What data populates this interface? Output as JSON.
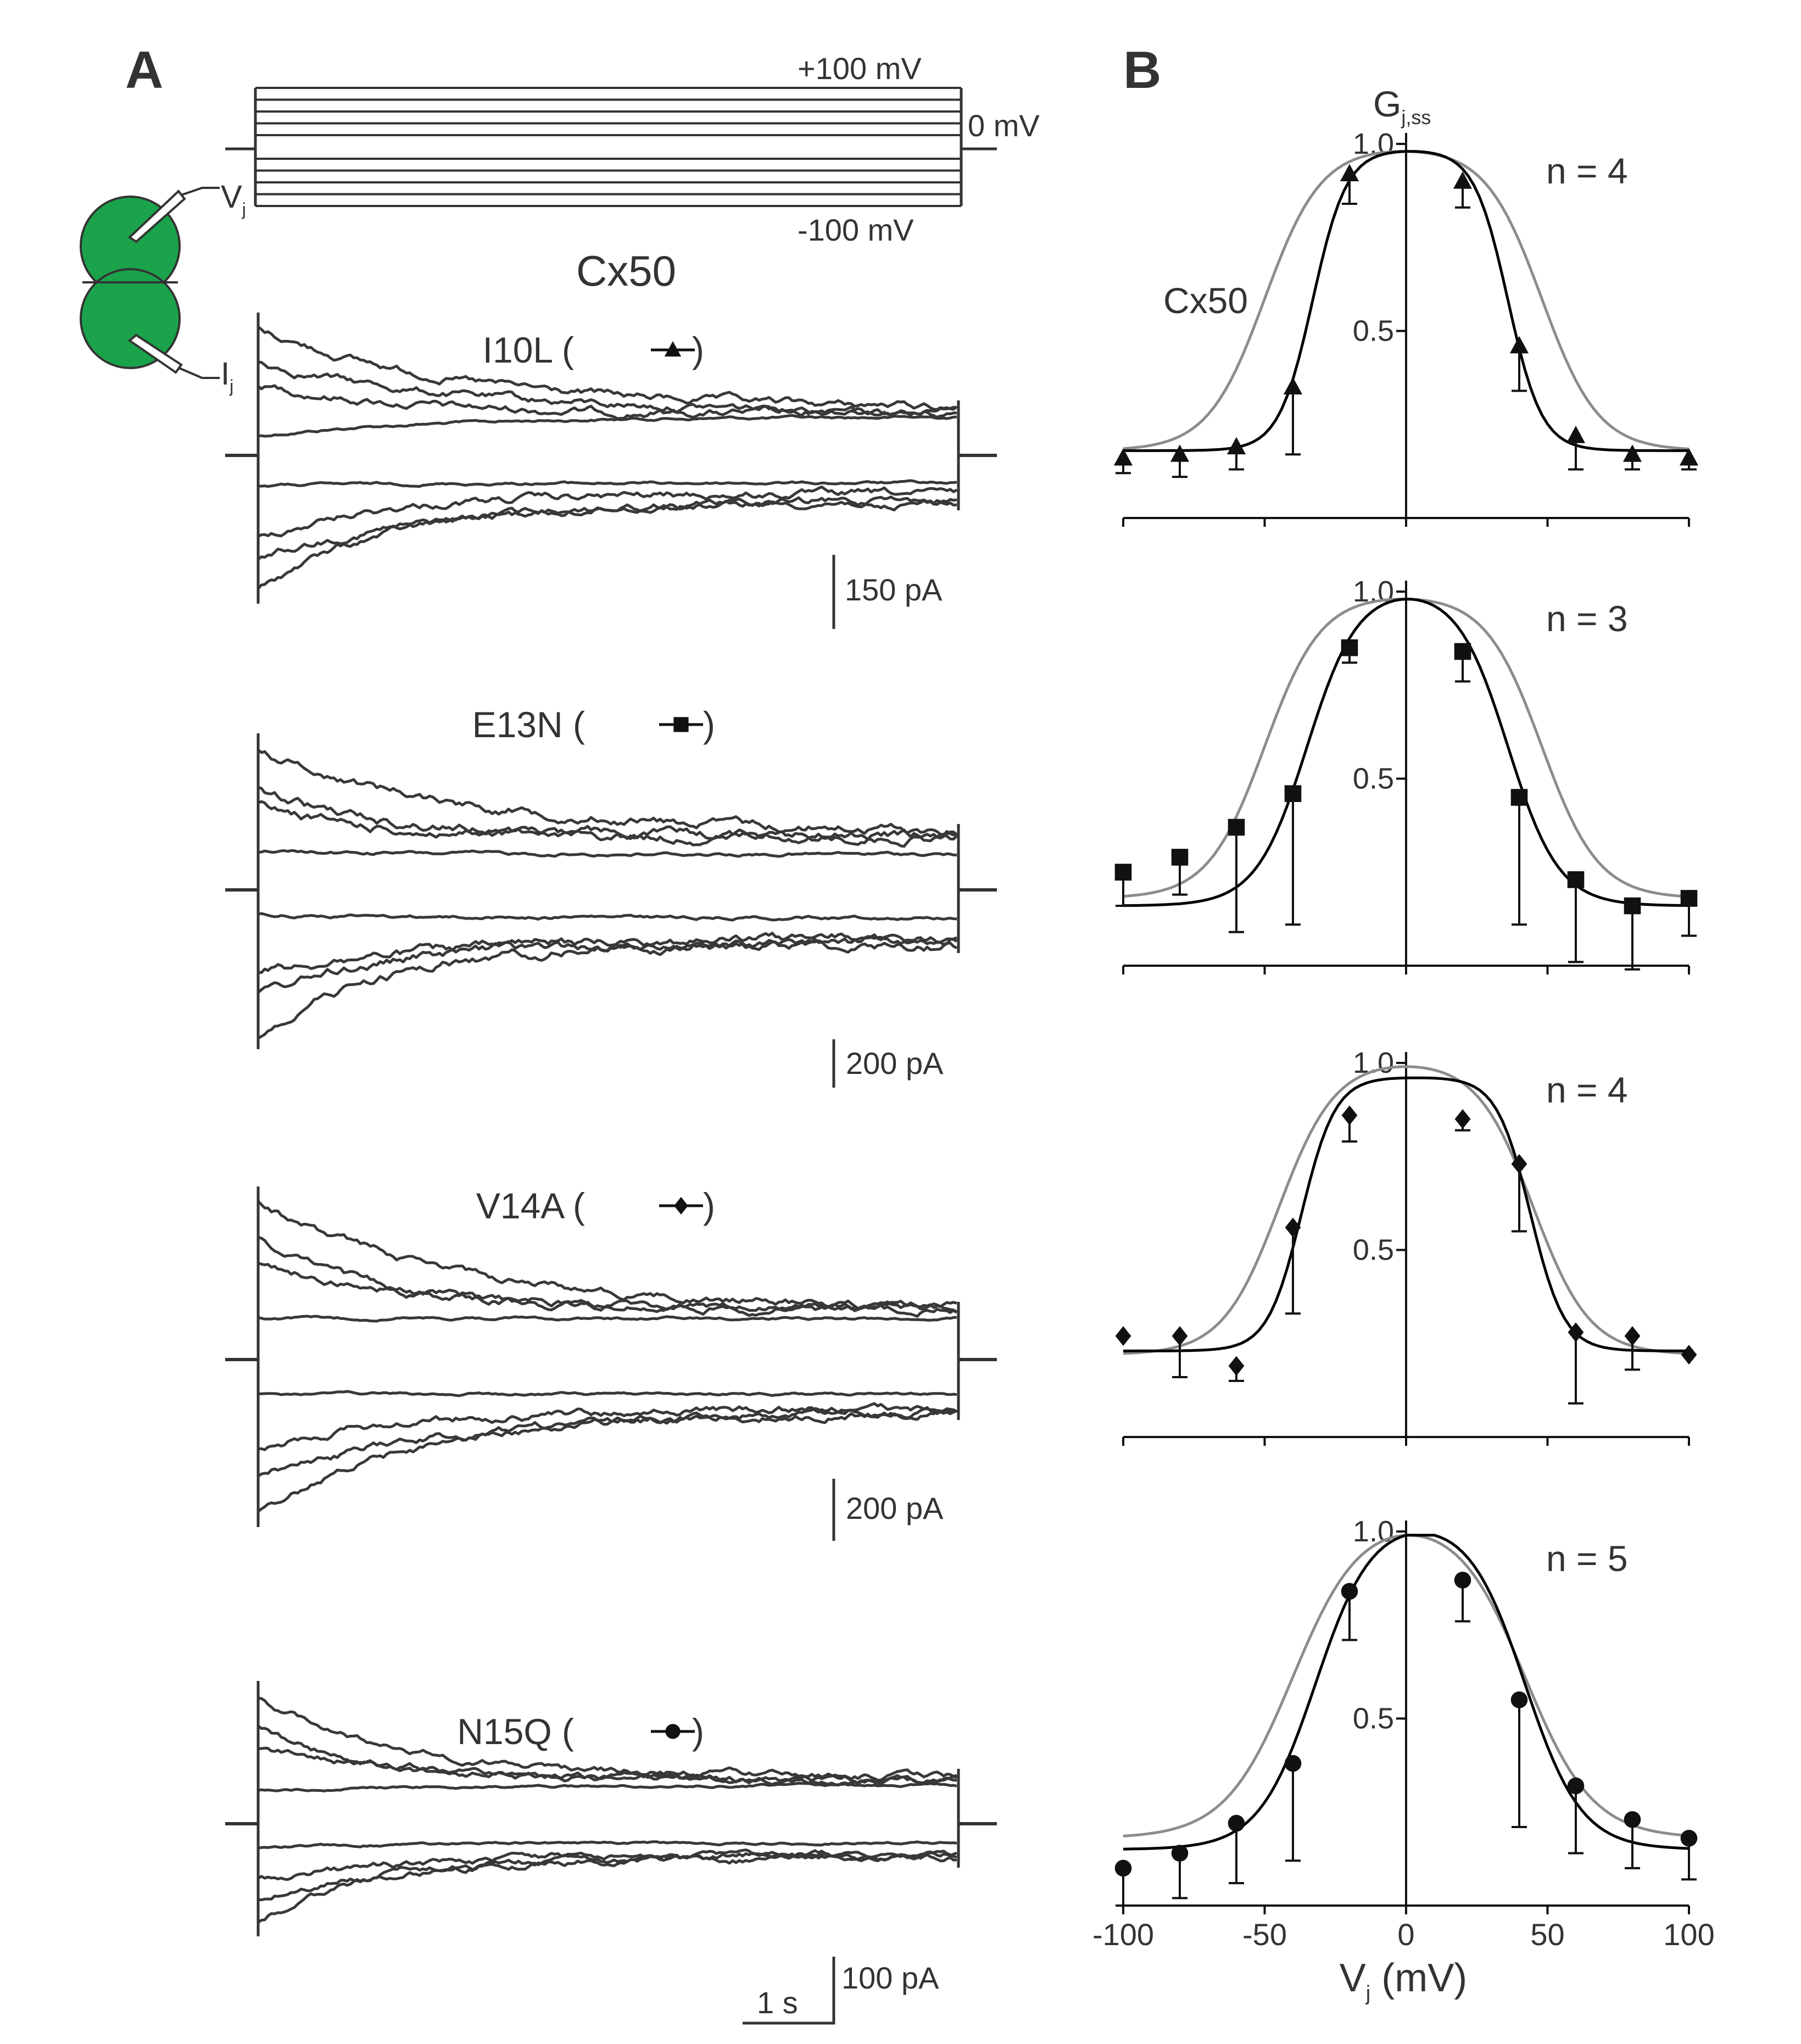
{
  "panel_a": {
    "label": "A",
    "protocol": {
      "top_label": "+100 mV",
      "zero_label": "0 mV",
      "bottom_label": "-100 mV",
      "step_levels_mV": [
        100,
        80,
        60,
        40,
        20,
        -20,
        -40,
        -60,
        -80,
        -100
      ]
    },
    "cell_pair": {
      "vj_label": "V",
      "vj_sub": "j",
      "ij_label": "I",
      "ij_sub": "j",
      "cell_color": "#1aa34a"
    },
    "title": "Cx50",
    "traces": [
      {
        "label": "I10L (",
        "marker": "triangle",
        "scale_label": "150 pA"
      },
      {
        "label": "E13N (",
        "marker": "square",
        "scale_label": "200 pA"
      },
      {
        "label": "V14A (",
        "marker": "diamond",
        "scale_label": "200 pA"
      },
      {
        "label": "N15Q (",
        "marker": "circle",
        "scale_label": "100 pA"
      }
    ],
    "close_paren": ")",
    "time_scale_label": "1 s"
  },
  "panel_b": {
    "label": "B",
    "ylabel_main": "G",
    "ylabel_sub": "j,ss",
    "reference_label": "Cx50",
    "xlabel_main": "V",
    "xlabel_sub": "j",
    "xlabel_unit": " (mV)",
    "reference_color": "#8c8c8c",
    "fit_color": "#000000"
  },
  "chart_data": [
    {
      "type": "scatter",
      "panel": "I10L",
      "marker": "triangle",
      "n_label": "n = 4",
      "x": [
        -100,
        -80,
        -60,
        -40,
        -20,
        20,
        40,
        60,
        80,
        100
      ],
      "y": [
        0.16,
        0.17,
        0.19,
        0.35,
        0.92,
        0.9,
        0.46,
        0.22,
        0.17,
        0.16
      ],
      "error_low": [
        0.04,
        0.06,
        0.06,
        0.18,
        0.08,
        0.07,
        0.12,
        0.09,
        0.04,
        0.03
      ],
      "error_high": [
        0,
        0,
        0,
        0,
        0,
        0,
        0,
        0,
        0,
        0
      ],
      "fit_curve": {
        "base": 0.18,
        "peak": 0.98,
        "v_neg": -33,
        "v_pos": 36,
        "k": 6
      },
      "reference_curve": {
        "base": 0.18,
        "peak": 0.98,
        "v_neg": -50,
        "v_pos": 48,
        "k": 10
      },
      "xlim": [
        -100,
        100
      ],
      "ylim": [
        0,
        1.0
      ],
      "yticks": [
        0.5,
        1.0
      ]
    },
    {
      "type": "scatter",
      "panel": "E13N",
      "marker": "square",
      "n_label": "n = 3",
      "x": [
        -100,
        -80,
        -60,
        -40,
        -20,
        20,
        40,
        60,
        80,
        100
      ],
      "y": [
        0.25,
        0.29,
        0.37,
        0.46,
        0.85,
        0.84,
        0.45,
        0.23,
        0.16,
        0.18
      ],
      "error_low": [
        0.09,
        0.1,
        0.28,
        0.35,
        0.04,
        0.08,
        0.34,
        0.22,
        0.17,
        0.1
      ],
      "error_high": [
        0,
        0,
        0,
        0,
        0,
        0,
        0,
        0,
        0,
        0
      ],
      "fit_curve": {
        "base": 0.16,
        "peak": 0.98,
        "v_neg": -35,
        "v_pos": 36,
        "k": 9
      },
      "reference_curve": {
        "base": 0.18,
        "peak": 0.98,
        "v_neg": -50,
        "v_pos": 48,
        "k": 10
      },
      "xlim": [
        -100,
        100
      ],
      "ylim": [
        0,
        1.0
      ],
      "yticks": [
        0.5,
        1.0
      ]
    },
    {
      "type": "scatter",
      "panel": "V14A",
      "marker": "diamond",
      "n_label": "n = 4",
      "x": [
        -100,
        -80,
        -60,
        -40,
        -20,
        20,
        40,
        60,
        80,
        100
      ],
      "y": [
        0.27,
        0.27,
        0.19,
        0.56,
        0.86,
        0.85,
        0.73,
        0.28,
        0.27,
        0.22
      ],
      "error_low": [
        0,
        0.11,
        0.04,
        0.23,
        0.07,
        0.03,
        0.18,
        0.19,
        0.09,
        0
      ],
      "error_high": [
        0,
        0,
        0,
        0,
        0,
        0,
        0,
        0,
        0,
        0
      ],
      "fit_curve": {
        "base": 0.23,
        "peak": 0.96,
        "v_neg": -37,
        "v_pos": 44,
        "k": 6
      },
      "reference_curve": {
        "base": 0.22,
        "peak": 0.99,
        "v_neg": -45,
        "v_pos": 45,
        "k": 10
      },
      "xlim": [
        -100,
        100
      ],
      "ylim": [
        0,
        1.0
      ],
      "yticks": [
        0.5,
        1.0
      ]
    },
    {
      "type": "scatter",
      "panel": "N15Q",
      "marker": "circle",
      "n_label": "n = 5",
      "x": [
        -100,
        -80,
        -60,
        -40,
        -20,
        20,
        40,
        60,
        80,
        100
      ],
      "y": [
        0.1,
        0.14,
        0.22,
        0.38,
        0.84,
        0.87,
        0.55,
        0.32,
        0.23,
        0.18
      ],
      "error_low": [
        0.1,
        0.12,
        0.16,
        0.26,
        0.13,
        0.11,
        0.34,
        0.18,
        0.13,
        0.11
      ],
      "error_high": [
        0,
        0,
        0,
        0,
        0,
        0,
        0,
        0,
        0,
        0
      ],
      "fit_curve": {
        "base": 0.15,
        "peak": 0.99,
        "v_neg": -32,
        "v_pos": 42,
        "k": 10
      },
      "reference_curve": {
        "base": 0.18,
        "peak": 0.99,
        "v_neg": -40,
        "v_pos": 42,
        "k": 12
      },
      "xlim": [
        -100,
        100
      ],
      "ylim": [
        0,
        1.0
      ],
      "yticks": [
        0.5,
        1.0
      ],
      "xticks": [
        -100,
        -50,
        0,
        50,
        100
      ]
    }
  ]
}
